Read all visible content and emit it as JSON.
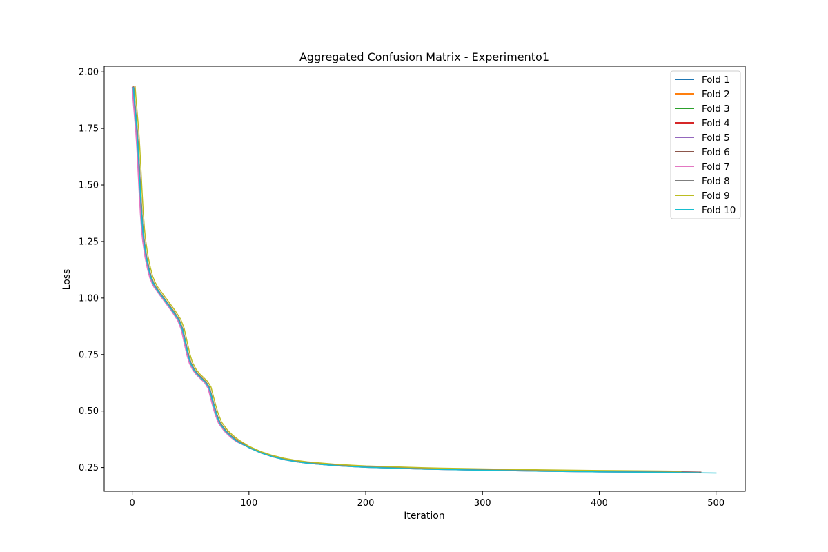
{
  "chart_data": {
    "type": "line",
    "title": "Aggregated Confusion Matrix - Experimento1",
    "xlabel": "Iteration",
    "ylabel": "Loss",
    "xlim": [
      -24,
      525
    ],
    "ylim": [
      0.145,
      2.025
    ],
    "xticks": [
      0,
      100,
      200,
      300,
      400,
      500
    ],
    "yticks": [
      0.25,
      0.5,
      0.75,
      1.0,
      1.25,
      1.5,
      1.75,
      2.0
    ],
    "ytick_labels": [
      "0.25",
      "0.50",
      "0.75",
      "1.00",
      "1.25",
      "1.50",
      "1.75",
      "2.00"
    ],
    "grid": false,
    "legend_position": "top-right",
    "base_curve": [
      [
        1,
        1.93
      ],
      [
        2,
        1.86
      ],
      [
        3,
        1.8
      ],
      [
        4,
        1.74
      ],
      [
        5,
        1.66
      ],
      [
        6,
        1.56
      ],
      [
        7,
        1.46
      ],
      [
        8,
        1.37
      ],
      [
        9,
        1.3
      ],
      [
        10,
        1.25
      ],
      [
        12,
        1.18
      ],
      [
        14,
        1.13
      ],
      [
        16,
        1.09
      ],
      [
        18,
        1.065
      ],
      [
        20,
        1.045
      ],
      [
        25,
        1.01
      ],
      [
        30,
        0.975
      ],
      [
        35,
        0.94
      ],
      [
        40,
        0.9
      ],
      [
        43,
        0.86
      ],
      [
        46,
        0.79
      ],
      [
        48,
        0.745
      ],
      [
        50,
        0.71
      ],
      [
        53,
        0.68
      ],
      [
        56,
        0.66
      ],
      [
        60,
        0.64
      ],
      [
        63,
        0.625
      ],
      [
        66,
        0.6
      ],
      [
        68,
        0.56
      ],
      [
        70,
        0.52
      ],
      [
        72,
        0.485
      ],
      [
        75,
        0.445
      ],
      [
        80,
        0.41
      ],
      [
        85,
        0.385
      ],
      [
        90,
        0.365
      ],
      [
        100,
        0.338
      ],
      [
        110,
        0.315
      ],
      [
        120,
        0.298
      ],
      [
        130,
        0.285
      ],
      [
        140,
        0.276
      ],
      [
        150,
        0.269
      ],
      [
        175,
        0.258
      ],
      [
        200,
        0.251
      ],
      [
        250,
        0.243
      ],
      [
        300,
        0.238
      ],
      [
        350,
        0.234
      ],
      [
        400,
        0.231
      ],
      [
        450,
        0.229
      ],
      [
        500,
        0.226
      ]
    ],
    "series": [
      {
        "name": "Fold 1",
        "color": "#1f77b4",
        "end_iteration": 470,
        "loss_offset": 0.0,
        "iteration_shift": 0.0
      },
      {
        "name": "Fold 2",
        "color": "#ff7f0e",
        "end_iteration": 470,
        "loss_offset": 0.004,
        "iteration_shift": 0.3
      },
      {
        "name": "Fold 3",
        "color": "#2ca02c",
        "end_iteration": 470,
        "loss_offset": 0.002,
        "iteration_shift": -0.3
      },
      {
        "name": "Fold 4",
        "color": "#d62728",
        "end_iteration": 487,
        "loss_offset": 0.003,
        "iteration_shift": 0.0
      },
      {
        "name": "Fold 5",
        "color": "#9467bd",
        "end_iteration": 480,
        "loss_offset": 0.001,
        "iteration_shift": -0.6
      },
      {
        "name": "Fold 6",
        "color": "#8c564b",
        "end_iteration": 487,
        "loss_offset": 0.003,
        "iteration_shift": 0.2
      },
      {
        "name": "Fold 7",
        "color": "#e377c2",
        "end_iteration": 470,
        "loss_offset": 0.0,
        "iteration_shift": -1.0
      },
      {
        "name": "Fold 8",
        "color": "#7f7f7f",
        "end_iteration": 485,
        "loss_offset": 0.002,
        "iteration_shift": 0.4
      },
      {
        "name": "Fold 9",
        "color": "#bcbd22",
        "end_iteration": 470,
        "loss_offset": 0.006,
        "iteration_shift": 1.5
      },
      {
        "name": "Fold 10",
        "color": "#17becf",
        "end_iteration": 500,
        "loss_offset": 0.0,
        "iteration_shift": 0.0
      }
    ]
  }
}
